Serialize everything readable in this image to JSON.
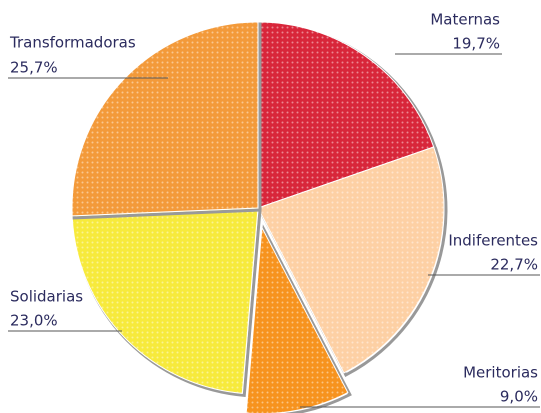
{
  "chart_data": {
    "type": "pie",
    "categories": [
      "Maternas",
      "Indiferentes",
      "Meritorias",
      "Solidarias",
      "Transformadoras"
    ],
    "values": [
      19.7,
      22.7,
      9.0,
      23.0,
      25.7
    ],
    "value_labels": [
      "19,7%",
      "22,7%",
      "9,0%",
      "23,0%",
      "25,7%"
    ],
    "colors": [
      "#d8263a",
      "#fdd0a4",
      "#f7931e",
      "#f7ea3c",
      "#f39a3a"
    ],
    "exploded": [
      "Meritorias"
    ]
  }
}
